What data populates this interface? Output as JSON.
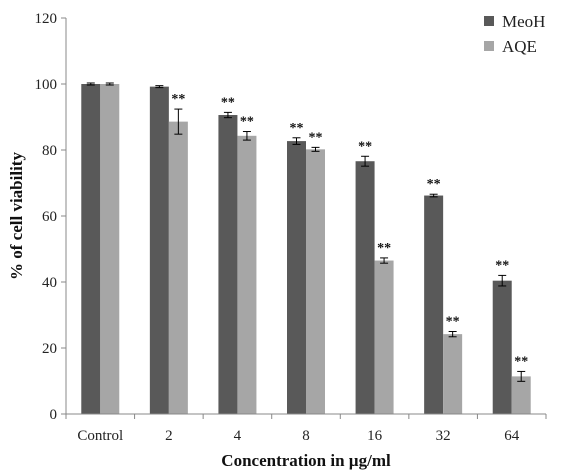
{
  "chart_data": {
    "type": "bar",
    "title": "",
    "xlabel": "Concentration in µg/ml",
    "ylabel": "% of cell viability",
    "ylim": [
      0,
      120
    ],
    "yticks": [
      0,
      20,
      40,
      60,
      80,
      100,
      120
    ],
    "categories": [
      "Control",
      "2",
      "4",
      "8",
      "16",
      "32",
      "64"
    ],
    "legend_position": "top-right",
    "grid": false,
    "series": [
      {
        "name": "MeoH",
        "color": "#595959",
        "values": [
          100,
          99.2,
          90.6,
          82.7,
          76.6,
          66.2,
          40.4
        ],
        "errors": [
          0.3,
          0.3,
          0.8,
          1.0,
          1.5,
          0.4,
          1.6
        ],
        "annotations": [
          "",
          "",
          "**",
          "**",
          "**",
          "**",
          "**"
        ]
      },
      {
        "name": "AQE",
        "color": "#a6a6a6",
        "values": [
          100,
          88.6,
          84.3,
          80.2,
          46.5,
          24.2,
          11.4
        ],
        "errors": [
          0.3,
          3.8,
          1.3,
          0.6,
          0.8,
          0.8,
          1.5
        ],
        "annotations": [
          "",
          "**",
          "**",
          "**",
          "**",
          "**",
          "**"
        ]
      }
    ]
  }
}
